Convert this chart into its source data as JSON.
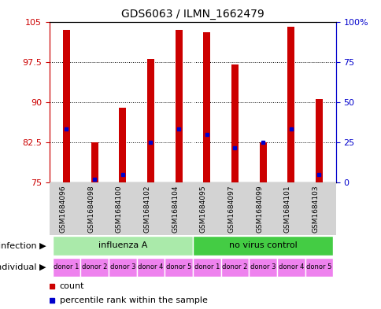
{
  "title": "GDS6063 / ILMN_1662479",
  "samples": [
    "GSM1684096",
    "GSM1684098",
    "GSM1684100",
    "GSM1684102",
    "GSM1684104",
    "GSM1684095",
    "GSM1684097",
    "GSM1684099",
    "GSM1684101",
    "GSM1684103"
  ],
  "bar_tops": [
    103.5,
    82.5,
    89.0,
    98.0,
    103.5,
    103.0,
    97.0,
    82.5,
    104.0,
    90.5
  ],
  "bar_bottom": 75,
  "blue_values": [
    85.0,
    75.5,
    76.5,
    82.5,
    85.0,
    84.0,
    81.5,
    82.5,
    85.0,
    76.5
  ],
  "ylim_left": [
    75,
    105
  ],
  "ylim_right": [
    0,
    100
  ],
  "yticks_left": [
    75,
    82.5,
    90,
    97.5,
    105
  ],
  "yticks_right": [
    0,
    25,
    50,
    75,
    100
  ],
  "ytick_labels_left": [
    "75",
    "82.5",
    "90",
    "97.5",
    "105"
  ],
  "ytick_labels_right": [
    "0",
    "25",
    "50",
    "75",
    "100%"
  ],
  "infection_groups": [
    {
      "label": "influenza A",
      "start": 0,
      "end": 5,
      "color": "#aaeaaa"
    },
    {
      "label": "no virus control",
      "start": 5,
      "end": 10,
      "color": "#44cc44"
    }
  ],
  "individual_labels": [
    "donor 1",
    "donor 2",
    "donor 3",
    "donor 4",
    "donor 5",
    "donor 1",
    "donor 2",
    "donor 3",
    "donor 4",
    "donor 5"
  ],
  "individual_color": "#ee82ee",
  "bar_color": "#cc0000",
  "blue_color": "#0000cc",
  "bg_color": "#ffffff",
  "bar_width": 0.25,
  "legend_items": [
    {
      "color": "#cc0000",
      "label": "count"
    },
    {
      "color": "#0000cc",
      "label": "percentile rank within the sample"
    }
  ],
  "infection_row_label": "infection",
  "individual_row_label": "individual"
}
